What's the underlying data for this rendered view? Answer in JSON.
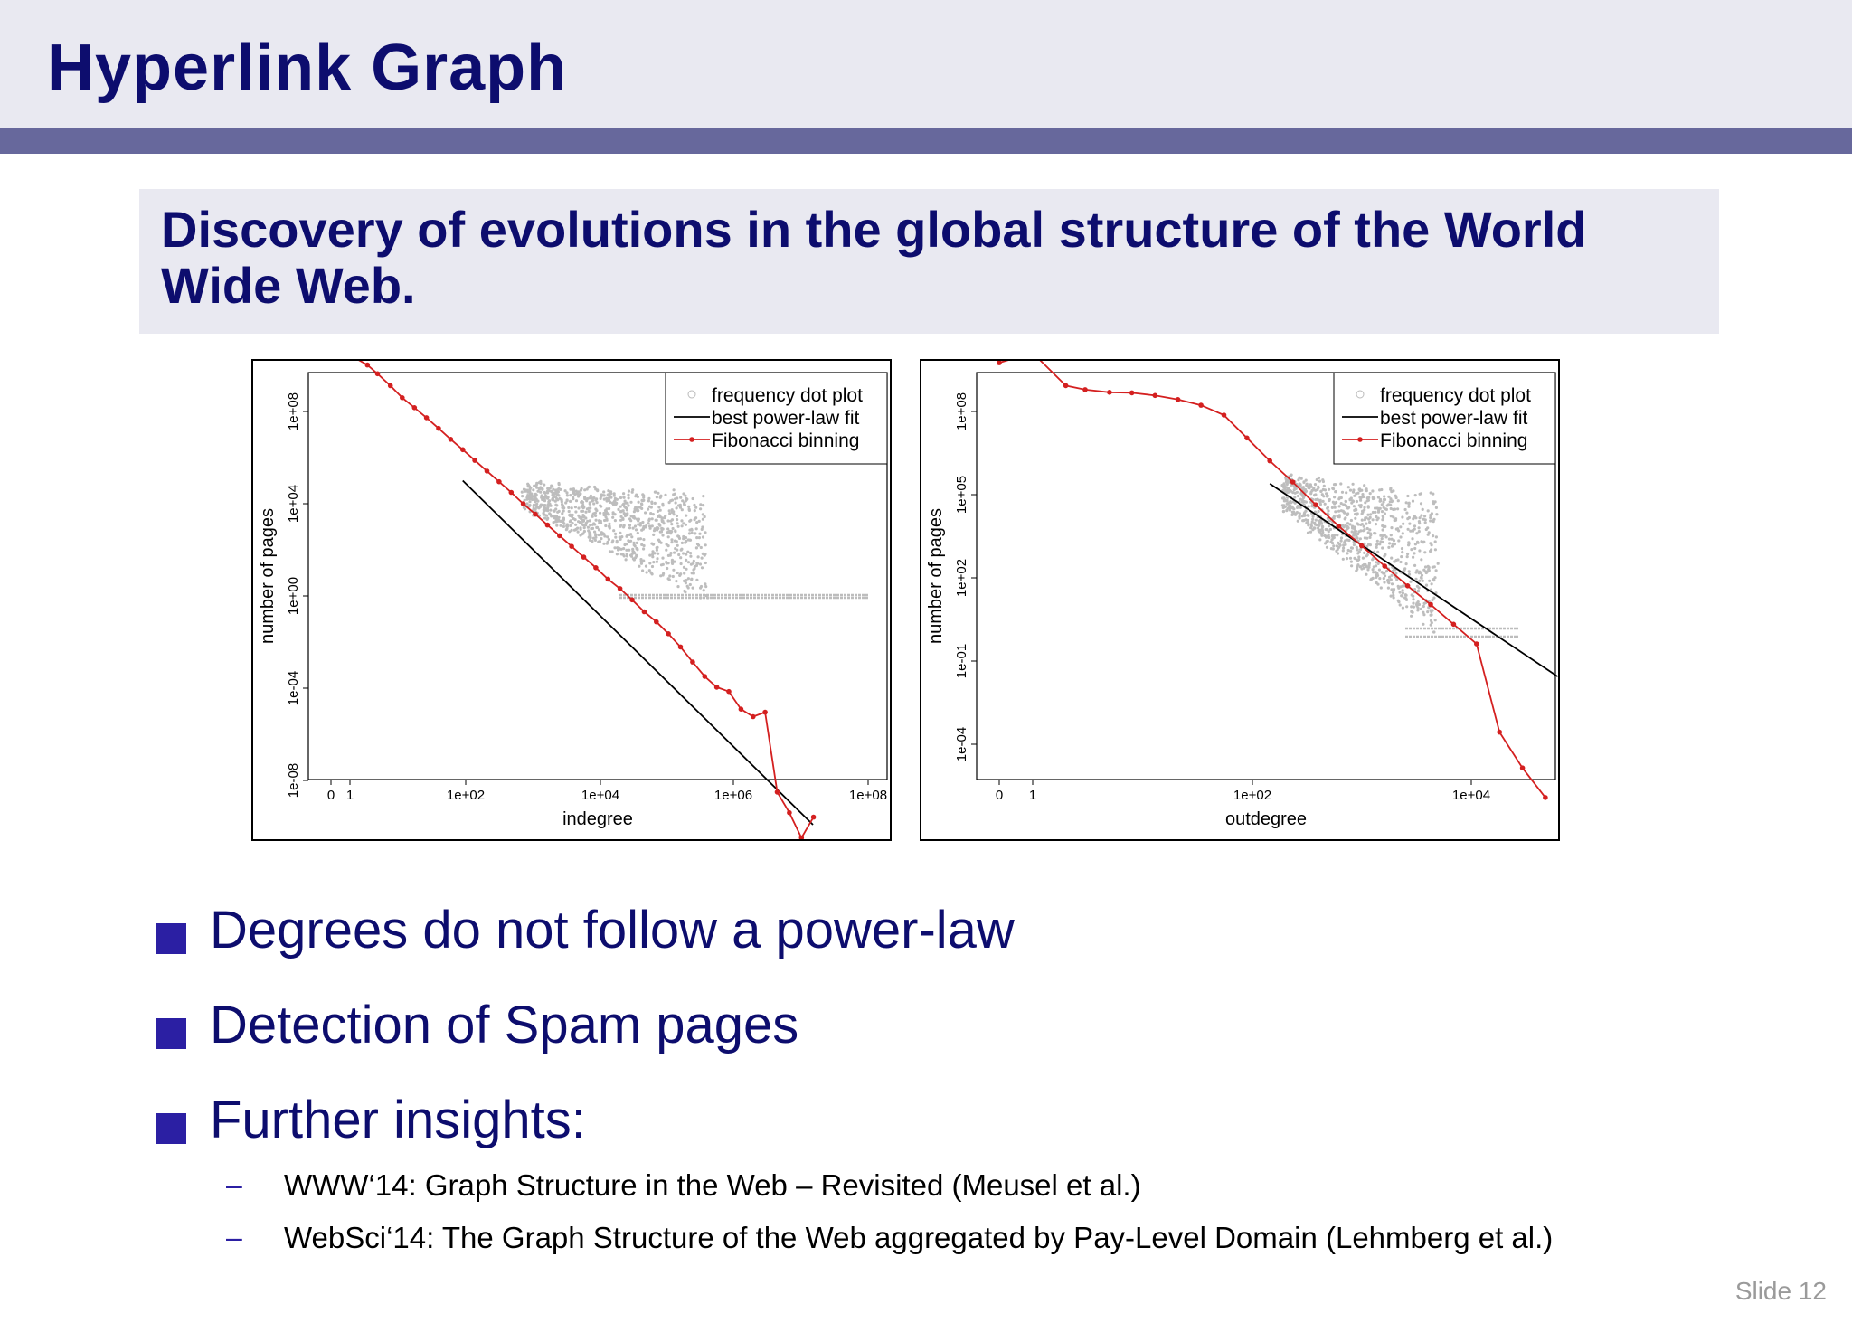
{
  "header": {
    "title": "Hyperlink Graph"
  },
  "subtitle": {
    "text": "Discovery of evolutions in the global structure of the World Wide Web."
  },
  "legend": [
    "frequency dot plot",
    "best power-law fit",
    "Fibonacci binning"
  ],
  "colors": {
    "header_bg": "#e9e9f1",
    "accent_bar": "#67689c",
    "title": "#0d0d6e",
    "bullet": "#2b1fa3",
    "bins": "#d42020",
    "dots": "#bdbdbd"
  },
  "chart_data": [
    {
      "type": "scatter",
      "xlabel": "indegree",
      "ylabel": "number of pages",
      "x_ticks": [
        "0",
        "1",
        "1e+02",
        "1e+04",
        "1e+06",
        "1e+08"
      ],
      "y_ticks": [
        "1e+08",
        "1e+04",
        "1e+00",
        "1e-04",
        "1e-08"
      ],
      "legend_position": "top-right",
      "series": [
        {
          "name": "Fibonacci binning",
          "x": [
            0,
            1,
            2,
            3,
            5,
            8,
            13,
            21,
            34,
            55,
            89,
            144,
            233,
            377,
            610,
            987,
            1597,
            2584,
            4181,
            6765,
            10946,
            17711,
            28657,
            46368,
            75025,
            121393,
            196418,
            317811,
            514229,
            832040,
            1346269,
            2178309,
            3524578,
            5702887,
            9227465,
            14930352,
            24157817,
            39088169,
            63245986,
            102334155
          ],
          "y": [
            500000000,
            500000000,
            200000000,
            90000000,
            30000000,
            10000000,
            4000000,
            1600000,
            600000,
            220000,
            85000,
            32000,
            12000,
            4500,
            1700,
            600,
            230,
            85,
            32,
            12,
            4.5,
            1.7,
            0.6,
            0.25,
            0.09,
            0.03,
            0.012,
            0.004,
            0.0012,
            0.0003,
            8e-05,
            3e-05,
            2e-05,
            4e-06,
            2e-06,
            3e-06,
            2e-09,
            3e-10,
            3e-11,
            2e-10
          ]
        },
        {
          "name": "best power-law fit",
          "x": [
            89,
            100000000
          ],
          "y": [
            5000,
            1e-10
          ]
        }
      ]
    },
    {
      "type": "scatter",
      "xlabel": "outdegree",
      "ylabel": "number of pages",
      "x_ticks": [
        "0",
        "1",
        "1e+02",
        "1e+04"
      ],
      "y_ticks": [
        "1e+08",
        "1e+05",
        "1e+02",
        "1e-01",
        "1e-04"
      ],
      "legend_position": "top-right",
      "series": [
        {
          "name": "Fibonacci binning",
          "x": [
            0,
            1,
            2,
            3,
            5,
            8,
            13,
            21,
            34,
            55,
            89,
            144,
            233,
            377,
            610,
            987,
            1597,
            2584,
            4181,
            6765,
            10946,
            17711,
            28657,
            46368
          ],
          "y": [
            200000000,
            400000000,
            40000000,
            30000000,
            25000000,
            24000000,
            20000000,
            15000000,
            10000000,
            5000000,
            1000000,
            200000,
            45000,
            9000,
            2000,
            500,
            120,
            30,
            8,
            2,
            0.5,
            0.001,
            8e-05,
            1e-05
          ]
        },
        {
          "name": "best power-law fit",
          "x": [
            144,
            60000
          ],
          "y": [
            40000,
            0.05
          ]
        }
      ]
    }
  ],
  "bullets": [
    "Degrees do not follow a power-law",
    "Detection of Spam pages",
    "Further insights:"
  ],
  "subbullets": [
    "WWW‘14: Graph Structure in the Web – Revisited (Meusel et al.)",
    "WebSci‘14: The Graph Structure of the Web aggregated by Pay-Level Domain (Lehmberg et al.)"
  ],
  "sub_dash": "–",
  "slide_number": "Slide 12"
}
